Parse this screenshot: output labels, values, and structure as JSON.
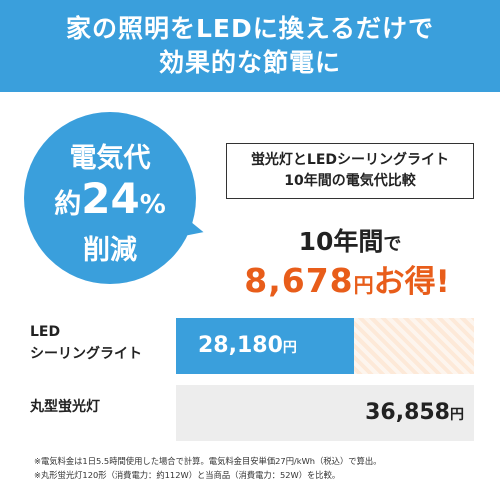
{
  "header": {
    "line1": "家の照明をLEDに換えるだけで",
    "line2": "効果的な節電に"
  },
  "bubble": {
    "top": "電気代",
    "prefix": "約",
    "number": "24",
    "percent": "%",
    "bottom": "削減"
  },
  "compare_box": {
    "line1": "蛍光灯とLEDシーリングライト",
    "line2": "10年間の電気代比較"
  },
  "savings": {
    "title_main": "10年間",
    "title_suffix": "で",
    "amount": "8,678",
    "unit": "円",
    "tagline": "お得!"
  },
  "comparison": [
    {
      "label_line1": "LED",
      "label_line2": "シーリングライト",
      "value": "28,180",
      "unit": "円"
    },
    {
      "label_line1": "丸型蛍光灯",
      "value": "36,858",
      "unit": "円"
    }
  ],
  "notes": [
    "※電気料金は1日5.5時間使用した場合で計算。電気料金目安単価27円/kWh（税込）で算出。",
    "※丸形蛍光灯120形（消費電力：約112W）と当商品（消費電力：52W）を比較。"
  ],
  "colors": {
    "accent": "#3a9fdc",
    "highlight": "#e85d1a",
    "bar_gray": "#ededed",
    "stripe": "#fde9d8"
  }
}
